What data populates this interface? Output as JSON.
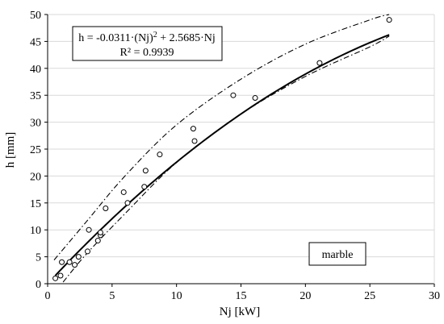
{
  "chart_data": {
    "type": "scatter",
    "xlabel": "Nj [kW]",
    "ylabel": "h [mm]",
    "xlim": [
      0,
      30
    ],
    "ylim": [
      0,
      50
    ],
    "x_ticks": [
      "0",
      "5",
      "10",
      "15",
      "20",
      "25",
      "30"
    ],
    "y_ticks": [
      "0",
      "5",
      "10",
      "15",
      "20",
      "25",
      "30",
      "35",
      "40",
      "45",
      "50"
    ],
    "grid": "horizontal",
    "equation": {
      "lhs": "h = -0.0311·(Nj)",
      "sup": "2",
      "rhs": " + 2.5685·Nj"
    },
    "r_squared": "R² = 0.9939",
    "material_label": "marble",
    "fit": {
      "a": -0.0311,
      "b": 2.5685,
      "x_start": 0.6,
      "x_end": 26.5
    },
    "band_upper": {
      "x": [
        0.5,
        3,
        6,
        10,
        15,
        20,
        25,
        26.5
      ],
      "y": [
        4.4,
        11.5,
        20,
        29.5,
        38,
        44.5,
        49,
        50
      ]
    },
    "band_lower": {
      "x": [
        1.2,
        3,
        6,
        10,
        15,
        20,
        25,
        26.5
      ],
      "y": [
        0.3,
        5.5,
        13,
        22.5,
        31.5,
        38.5,
        44,
        46
      ]
    },
    "points": [
      {
        "x": 0.6,
        "y": 1.0
      },
      {
        "x": 1.0,
        "y": 1.5
      },
      {
        "x": 1.1,
        "y": 4.0
      },
      {
        "x": 1.7,
        "y": 4.0
      },
      {
        "x": 2.1,
        "y": 3.5
      },
      {
        "x": 2.4,
        "y": 5.0
      },
      {
        "x": 3.1,
        "y": 6.0
      },
      {
        "x": 3.2,
        "y": 10.0
      },
      {
        "x": 3.9,
        "y": 8.0
      },
      {
        "x": 4.1,
        "y": 9.0
      },
      {
        "x": 4.1,
        "y": 9.5
      },
      {
        "x": 4.5,
        "y": 14.0
      },
      {
        "x": 5.9,
        "y": 17.0
      },
      {
        "x": 6.2,
        "y": 15.0
      },
      {
        "x": 7.5,
        "y": 18.0
      },
      {
        "x": 7.6,
        "y": 21.0
      },
      {
        "x": 8.7,
        "y": 24.0
      },
      {
        "x": 11.3,
        "y": 28.8
      },
      {
        "x": 11.4,
        "y": 26.5
      },
      {
        "x": 14.4,
        "y": 35.0
      },
      {
        "x": 16.1,
        "y": 34.5
      },
      {
        "x": 21.1,
        "y": 41.0
      },
      {
        "x": 26.5,
        "y": 49.0
      }
    ]
  }
}
